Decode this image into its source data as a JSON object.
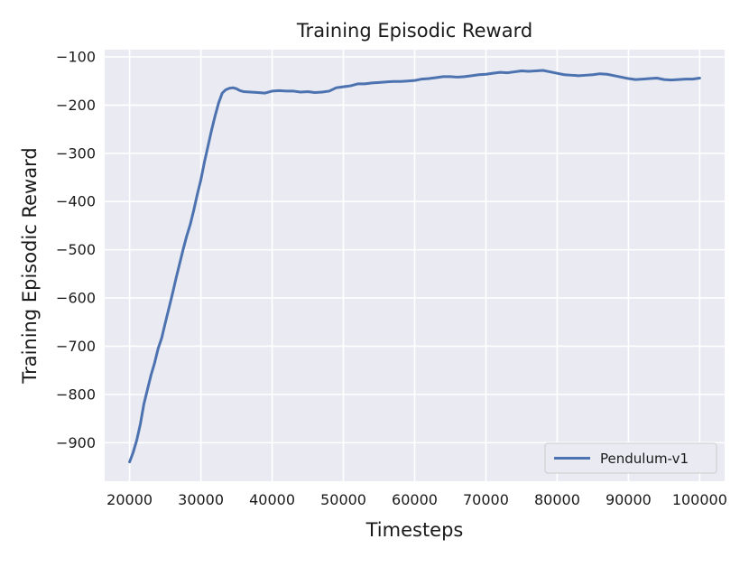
{
  "chart_data": {
    "type": "line",
    "title": "Training Episodic Reward",
    "xlabel": "Timesteps",
    "ylabel": "Training Episodic Reward",
    "xlim": [
      16500,
      103500
    ],
    "ylim": [
      -980,
      -85
    ],
    "xticks": [
      20000,
      30000,
      40000,
      50000,
      60000,
      70000,
      80000,
      90000,
      100000
    ],
    "xtick_labels": [
      "20000",
      "30000",
      "40000",
      "50000",
      "60000",
      "70000",
      "80000",
      "90000",
      "100000"
    ],
    "yticks": [
      -900,
      -800,
      -700,
      -600,
      -500,
      -400,
      -300,
      -200,
      -100
    ],
    "ytick_labels": [
      "−900",
      "−800",
      "−700",
      "−600",
      "−500",
      "−400",
      "−300",
      "−200",
      "−100"
    ],
    "grid": true,
    "legend_position": "lower-right",
    "series": [
      {
        "name": "Pendulum-v1",
        "color": "#4c72b0",
        "x": [
          20000,
          20500,
          21000,
          21500,
          22000,
          22500,
          23000,
          23500,
          24000,
          24500,
          25000,
          25500,
          26000,
          26500,
          27000,
          27500,
          28000,
          28500,
          29000,
          29500,
          30000,
          30500,
          31000,
          31500,
          32000,
          32500,
          33000,
          33500,
          34000,
          34500,
          35000,
          35500,
          36000,
          37000,
          38000,
          39000,
          40000,
          41000,
          42000,
          43000,
          44000,
          45000,
          46000,
          47000,
          48000,
          49000,
          50000,
          51000,
          52000,
          53000,
          54000,
          55000,
          56000,
          57000,
          58000,
          59000,
          60000,
          61000,
          62000,
          63000,
          64000,
          65000,
          66000,
          67000,
          68000,
          69000,
          70000,
          71000,
          72000,
          73000,
          74000,
          75000,
          76000,
          77000,
          78000,
          79000,
          80000,
          81000,
          82000,
          83000,
          84000,
          85000,
          86000,
          87000,
          88000,
          89000,
          90000,
          91000,
          92000,
          93000,
          94000,
          95000,
          96000,
          97000,
          98000,
          99000,
          100000
        ],
        "values": [
          -940,
          -920,
          -895,
          -862,
          -820,
          -790,
          -760,
          -735,
          -705,
          -683,
          -652,
          -622,
          -592,
          -560,
          -530,
          -500,
          -472,
          -448,
          -418,
          -385,
          -355,
          -318,
          -285,
          -252,
          -222,
          -195,
          -175,
          -168,
          -165,
          -164,
          -166,
          -170,
          -172,
          -173,
          -174,
          -175,
          -171,
          -170,
          -171,
          -171,
          -173,
          -172,
          -174,
          -173,
          -171,
          -164,
          -162,
          -160,
          -156,
          -156,
          -154,
          -153,
          -152,
          -151,
          -151,
          -150,
          -149,
          -146,
          -145,
          -143,
          -141,
          -141,
          -142,
          -141,
          -139,
          -137,
          -136,
          -134,
          -132,
          -133,
          -131,
          -129,
          -130,
          -129,
          -128,
          -131,
          -134,
          -137,
          -138,
          -139,
          -138,
          -137,
          -135,
          -136,
          -139,
          -142,
          -145,
          -147,
          -146,
          -145,
          -144,
          -147,
          -148,
          -147,
          -146,
          -146,
          -144
        ]
      }
    ]
  }
}
